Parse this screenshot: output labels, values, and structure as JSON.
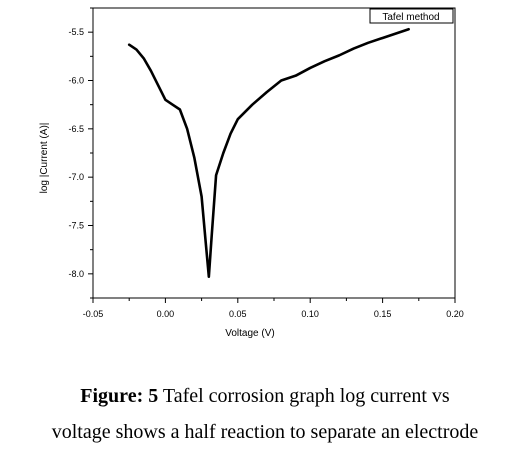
{
  "chart_data": {
    "type": "line",
    "title": "",
    "xlabel": "Voltage (V)",
    "ylabel": "log |Current (A)|",
    "xlim": [
      -0.05,
      0.2
    ],
    "ylim": [
      -8.25,
      -5.25
    ],
    "x_ticks": [
      -0.05,
      0.0,
      0.05,
      0.1,
      0.15,
      0.2
    ],
    "x_tick_labels": [
      "-0.05",
      "0.00",
      "0.05",
      "0.10",
      "0.15",
      "0.20"
    ],
    "y_ticks": [
      -5.5,
      -6.0,
      -6.5,
      -7.0,
      -7.5,
      -8.0
    ],
    "y_tick_labels": [
      "-5.5",
      "-6.0",
      "-6.5",
      "-7.0",
      "-7.5",
      "-8.0"
    ],
    "grid": false,
    "legend_position": "top-right",
    "series": [
      {
        "name": "Tafel method",
        "color": "#000000",
        "points": [
          [
            -0.025,
            -5.63
          ],
          [
            -0.02,
            -5.68
          ],
          [
            -0.015,
            -5.77
          ],
          [
            -0.01,
            -5.9
          ],
          [
            -0.005,
            -6.05
          ],
          [
            0.0,
            -6.2
          ],
          [
            0.005,
            -6.25
          ],
          [
            0.01,
            -6.3
          ],
          [
            0.015,
            -6.5
          ],
          [
            0.02,
            -6.8
          ],
          [
            0.025,
            -7.2
          ],
          [
            0.028,
            -7.7
          ],
          [
            0.03,
            -8.03
          ],
          [
            0.032,
            -7.6
          ],
          [
            0.035,
            -6.98
          ],
          [
            0.04,
            -6.75
          ],
          [
            0.045,
            -6.55
          ],
          [
            0.05,
            -6.4
          ],
          [
            0.06,
            -6.25
          ],
          [
            0.07,
            -6.12
          ],
          [
            0.08,
            -6.0
          ],
          [
            0.09,
            -5.95
          ],
          [
            0.1,
            -5.87
          ],
          [
            0.11,
            -5.8
          ],
          [
            0.12,
            -5.74
          ],
          [
            0.13,
            -5.67
          ],
          [
            0.14,
            -5.61
          ],
          [
            0.15,
            -5.56
          ],
          [
            0.16,
            -5.51
          ],
          [
            0.168,
            -5.47
          ]
        ]
      }
    ]
  },
  "caption": {
    "label": "Figure: 5",
    "line1": " Tafel corrosion graph log current vs",
    "line2": "voltage shows a half reaction to separate an electrode"
  }
}
